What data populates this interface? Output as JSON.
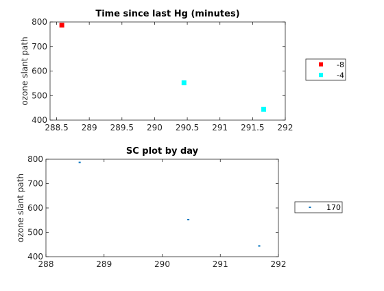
{
  "chart_data": [
    {
      "type": "scatter",
      "title": "Time since last Hg (minutes)",
      "xlabel": "",
      "ylabel": "ozone slant path",
      "xlim": [
        288.4,
        292
      ],
      "ylim": [
        400,
        800
      ],
      "xticks": [
        288.5,
        289,
        289.5,
        290,
        290.5,
        291,
        291.5,
        292
      ],
      "xtick_labels": [
        "288.5",
        "289",
        "289.5",
        "290",
        "290.5",
        "291",
        "291.5",
        "292"
      ],
      "yticks": [
        400,
        500,
        600,
        700,
        800
      ],
      "ytick_labels": [
        "400",
        "500",
        "600",
        "700",
        "800"
      ],
      "legend_position": "outside-right",
      "series": [
        {
          "name": "-8",
          "color": "#ff0000",
          "marker": "square",
          "points": [
            [
              288.58,
              787
            ]
          ]
        },
        {
          "name": "-4",
          "color": "#00ffff",
          "marker": "square",
          "points": [
            [
              290.45,
              552
            ],
            [
              291.67,
              444
            ]
          ]
        }
      ]
    },
    {
      "type": "scatter",
      "title": "SC plot by day",
      "xlabel": "",
      "ylabel": "ozone slant path",
      "xlim": [
        288,
        292
      ],
      "ylim": [
        400,
        800
      ],
      "xticks": [
        288,
        289,
        290,
        291,
        292
      ],
      "xtick_labels": [
        "288",
        "289",
        "290",
        "291",
        "292"
      ],
      "yticks": [
        400,
        500,
        600,
        700,
        800
      ],
      "ytick_labels": [
        "400",
        "500",
        "600",
        "700",
        "800"
      ],
      "legend_position": "outside-right",
      "series": [
        {
          "name": "170",
          "color": "#0072bd",
          "marker": "point",
          "points": [
            [
              288.58,
              787
            ],
            [
              290.45,
              552
            ],
            [
              291.67,
              444
            ]
          ]
        }
      ]
    }
  ]
}
